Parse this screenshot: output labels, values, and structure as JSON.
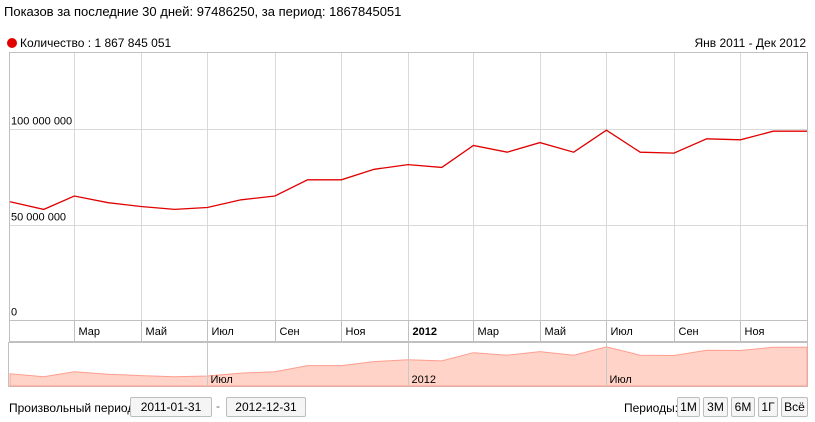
{
  "header": {
    "title": "Показов за последние 30 дней: 97486250, за период: 1867845051"
  },
  "legend": {
    "label": "Количество : 1 867 845 051",
    "color": "#e00000"
  },
  "range_label": "Янв 2011 - Дек 2012",
  "chart_data": {
    "type": "line",
    "series": [
      {
        "name": "Количество",
        "x": [
          "2010-12-31",
          "2011-01-31",
          "2011-02-28",
          "2011-03-31",
          "2011-04-30",
          "2011-05-31",
          "2011-06-30",
          "2011-07-31",
          "2011-08-31",
          "2011-09-30",
          "2011-10-31",
          "2011-11-30",
          "2011-12-31",
          "2012-01-31",
          "2012-02-29",
          "2012-03-31",
          "2012-04-30",
          "2012-05-31",
          "2012-06-30",
          "2012-07-31",
          "2012-08-31",
          "2012-09-30",
          "2012-10-31",
          "2012-11-30",
          "2012-12-31"
        ],
        "values": [
          62000000,
          58000000,
          65000000,
          61500000,
          59500000,
          58000000,
          59000000,
          63000000,
          65000000,
          73500000,
          73500000,
          79000000,
          81500000,
          80000000,
          91500000,
          88000000,
          93000000,
          88000000,
          99500000,
          88000000,
          87500000,
          95000000,
          94500000,
          99000000,
          99000000
        ]
      }
    ],
    "y_ticks": [
      {
        "value": 0,
        "label": "0"
      },
      {
        "value": 50000000,
        "label": "50 000 000"
      },
      {
        "value": 100000000,
        "label": "100 000 000"
      }
    ],
    "ylim": [
      0,
      140000000
    ],
    "xlim": [
      "2010-12-31",
      "2012-12-31"
    ],
    "x_ticks": [
      {
        "date": "2011-02-28",
        "label": "Мар",
        "bold": false
      },
      {
        "date": "2011-04-30",
        "label": "Май",
        "bold": false
      },
      {
        "date": "2011-06-30",
        "label": "Июл",
        "bold": false
      },
      {
        "date": "2011-08-31",
        "label": "Сен",
        "bold": false
      },
      {
        "date": "2011-10-31",
        "label": "Ноя",
        "bold": false
      },
      {
        "date": "2011-12-31",
        "label": "2012",
        "bold": true
      },
      {
        "date": "2012-02-29",
        "label": "Мар",
        "bold": false
      },
      {
        "date": "2012-04-30",
        "label": "Май",
        "bold": false
      },
      {
        "date": "2012-06-30",
        "label": "Июл",
        "bold": false
      },
      {
        "date": "2012-08-31",
        "label": "Сен",
        "bold": false
      },
      {
        "date": "2012-10-31",
        "label": "Ноя",
        "bold": false
      }
    ],
    "navigator_labels": [
      {
        "date": "2011-06-30",
        "label": "Июл"
      },
      {
        "date": "2011-12-31",
        "label": "2012"
      },
      {
        "date": "2012-06-30",
        "label": "Июл"
      }
    ],
    "grid": true,
    "line_color": "#e00000",
    "navigator_fill": "#ffd3c8",
    "navigator_line": "#ff9d8e"
  },
  "footer": {
    "custom_period_label": "Произвольный период:",
    "date_from": "2011-01-31",
    "date_separator": "-",
    "date_to": "2012-12-31",
    "periods_label": "Периоды:",
    "periods": [
      "1М",
      "3М",
      "6М",
      "1Г",
      "Всё"
    ]
  }
}
